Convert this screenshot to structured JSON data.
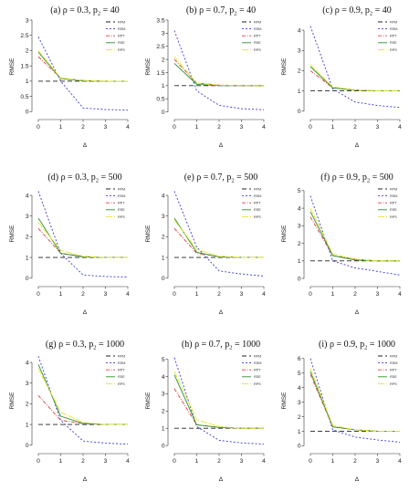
{
  "figure": {
    "legend_order": [
      "RFM",
      "RSM",
      "RPT",
      "RSE",
      "RPS"
    ],
    "series_styles": {
      "RFM": {
        "color": "#222222",
        "dash": "5,3"
      },
      "RSM": {
        "color": "#3b3bd6",
        "dash": "2,2"
      },
      "RPT": {
        "color": "#e03c3c",
        "dash": "4,1.5,1,1.5"
      },
      "RSE": {
        "color": "#2f8f2f",
        "dash": ""
      },
      "RPS": {
        "color": "#e6e62a",
        "dash": "7,2"
      }
    }
  },
  "chart_data": [
    {
      "id": "a",
      "type": "line",
      "title_prefix": "(a) ρ = 0.3, p",
      "title_sub": "2",
      "title_suffix": " = 40",
      "xlabel": "Δ",
      "ylabel": "RMSE",
      "x": [
        0,
        1,
        2,
        3,
        4
      ],
      "xlim": [
        0,
        4
      ],
      "ylim": [
        -0.05,
        3.0
      ],
      "yticks": [
        0.0,
        0.5,
        1.0,
        1.5,
        2.0,
        2.5,
        3.0
      ],
      "series": [
        {
          "name": "RFM",
          "values": [
            1.0,
            1.0,
            1.0,
            1.0,
            1.0
          ]
        },
        {
          "name": "RSM",
          "values": [
            2.45,
            1.0,
            0.12,
            0.07,
            0.05
          ]
        },
        {
          "name": "RPT",
          "values": [
            1.8,
            1.1,
            1.02,
            1.0,
            1.0
          ]
        },
        {
          "name": "RSE",
          "values": [
            1.95,
            1.08,
            1.01,
            1.0,
            1.0
          ]
        },
        {
          "name": "RPS",
          "values": [
            2.0,
            1.1,
            1.02,
            1.0,
            1.0
          ]
        }
      ]
    },
    {
      "id": "b",
      "type": "line",
      "title_prefix": "(b) ρ = 0.7, p",
      "title_sub": "2",
      "title_suffix": " = 40",
      "xlabel": "Δ",
      "ylabel": "RMSE",
      "x": [
        0,
        1,
        2,
        3,
        4
      ],
      "xlim": [
        0,
        4
      ],
      "ylim": [
        -0.05,
        3.5
      ],
      "yticks": [
        0.0,
        0.5,
        1.0,
        1.5,
        2.0,
        2.5,
        3.0,
        3.5
      ],
      "series": [
        {
          "name": "RFM",
          "values": [
            1.0,
            1.0,
            1.0,
            1.0,
            1.0
          ]
        },
        {
          "name": "RSM",
          "values": [
            3.1,
            0.8,
            0.25,
            0.12,
            0.08
          ]
        },
        {
          "name": "RPT",
          "values": [
            2.0,
            1.1,
            1.02,
            1.0,
            1.0
          ]
        },
        {
          "name": "RSE",
          "values": [
            1.85,
            1.05,
            1.0,
            1.0,
            1.0
          ]
        },
        {
          "name": "RPS",
          "values": [
            2.1,
            1.1,
            1.02,
            1.0,
            1.0
          ]
        }
      ]
    },
    {
      "id": "c",
      "type": "line",
      "title_prefix": "(c) ρ = 0.9, p",
      "title_sub": "2",
      "title_suffix": " = 40",
      "xlabel": "Δ",
      "ylabel": "RMSE",
      "x": [
        0,
        1,
        2,
        3,
        4
      ],
      "xlim": [
        0,
        4
      ],
      "ylim": [
        -0.1,
        4.5
      ],
      "yticks": [
        0,
        1,
        2,
        3,
        4
      ],
      "series": [
        {
          "name": "RFM",
          "values": [
            1.0,
            1.0,
            1.0,
            1.0,
            1.0
          ]
        },
        {
          "name": "RSM",
          "values": [
            4.2,
            1.1,
            0.45,
            0.28,
            0.18
          ]
        },
        {
          "name": "RPT",
          "values": [
            2.0,
            1.15,
            1.05,
            1.0,
            1.0
          ]
        },
        {
          "name": "RSE",
          "values": [
            2.2,
            1.15,
            1.03,
            1.0,
            1.0
          ]
        },
        {
          "name": "RPS",
          "values": [
            2.3,
            1.2,
            1.05,
            1.0,
            1.0
          ]
        }
      ]
    },
    {
      "id": "d",
      "type": "line",
      "title_prefix": "(d) ρ = 0.3, p",
      "title_sub": "2",
      "title_suffix": " = 500",
      "xlabel": "Δ",
      "ylabel": "RMSE",
      "x": [
        0,
        1,
        2,
        3,
        4
      ],
      "xlim": [
        0,
        4
      ],
      "ylim": [
        -0.1,
        4.4
      ],
      "yticks": [
        0,
        1,
        2,
        3,
        4
      ],
      "series": [
        {
          "name": "RFM",
          "values": [
            1.0,
            1.0,
            1.0,
            1.0,
            1.0
          ]
        },
        {
          "name": "RSM",
          "values": [
            4.2,
            1.2,
            0.15,
            0.08,
            0.05
          ]
        },
        {
          "name": "RPT",
          "values": [
            2.4,
            1.2,
            1.05,
            1.0,
            1.0
          ]
        },
        {
          "name": "RSE",
          "values": [
            2.9,
            1.2,
            1.03,
            1.0,
            1.0
          ]
        },
        {
          "name": "RPS",
          "values": [
            2.7,
            1.35,
            1.05,
            1.0,
            1.0
          ]
        }
      ]
    },
    {
      "id": "e",
      "type": "line",
      "title_prefix": "(e) ρ = 0.7, p",
      "title_sub": "2",
      "title_suffix": " = 500",
      "xlabel": "Δ",
      "ylabel": "RMSE",
      "x": [
        0,
        1,
        2,
        3,
        4
      ],
      "xlim": [
        0,
        4
      ],
      "ylim": [
        -0.1,
        4.4
      ],
      "yticks": [
        0,
        1,
        2,
        3,
        4
      ],
      "series": [
        {
          "name": "RFM",
          "values": [
            1.0,
            1.0,
            1.0,
            1.0,
            1.0
          ]
        },
        {
          "name": "RSM",
          "values": [
            4.2,
            1.5,
            0.35,
            0.2,
            0.1
          ]
        },
        {
          "name": "RPT",
          "values": [
            2.4,
            1.2,
            1.05,
            1.0,
            1.0
          ]
        },
        {
          "name": "RSE",
          "values": [
            2.9,
            1.25,
            1.03,
            1.0,
            1.0
          ]
        },
        {
          "name": "RPS",
          "values": [
            2.8,
            1.4,
            1.05,
            1.0,
            1.0
          ]
        }
      ]
    },
    {
      "id": "f",
      "type": "line",
      "title_prefix": "(f) ρ = 0.9, p",
      "title_sub": "2",
      "title_suffix": " = 500",
      "xlabel": "Δ",
      "ylabel": "RMSE",
      "x": [
        0,
        1,
        2,
        3,
        4
      ],
      "xlim": [
        0,
        4
      ],
      "ylim": [
        -0.1,
        5.2
      ],
      "yticks": [
        0,
        1,
        2,
        3,
        4,
        5
      ],
      "series": [
        {
          "name": "RFM",
          "values": [
            1.0,
            1.0,
            1.0,
            1.0,
            1.0
          ]
        },
        {
          "name": "RSM",
          "values": [
            4.7,
            1.0,
            0.6,
            0.4,
            0.2
          ]
        },
        {
          "name": "RPT",
          "values": [
            3.5,
            1.3,
            1.1,
            1.0,
            1.0
          ]
        },
        {
          "name": "RSE",
          "values": [
            3.8,
            1.3,
            1.05,
            1.0,
            1.0
          ]
        },
        {
          "name": "RPS",
          "values": [
            4.0,
            1.4,
            1.1,
            1.0,
            1.0
          ]
        }
      ]
    },
    {
      "id": "g",
      "type": "line",
      "title_prefix": "(g) ρ = 0.3, p",
      "title_sub": "2",
      "title_suffix": " = 1000",
      "xlabel": "Δ",
      "ylabel": "RMSE",
      "x": [
        0,
        1,
        2,
        3,
        4
      ],
      "xlim": [
        0,
        4
      ],
      "ylim": [
        -0.1,
        4.4
      ],
      "yticks": [
        0,
        1,
        2,
        3,
        4
      ],
      "series": [
        {
          "name": "RFM",
          "values": [
            1.0,
            1.0,
            1.0,
            1.0,
            1.0
          ]
        },
        {
          "name": "RSM",
          "values": [
            4.3,
            1.2,
            0.2,
            0.1,
            0.05
          ]
        },
        {
          "name": "RPT",
          "values": [
            2.4,
            1.2,
            1.05,
            1.0,
            1.0
          ]
        },
        {
          "name": "RSE",
          "values": [
            3.9,
            1.4,
            1.05,
            1.0,
            1.0
          ]
        },
        {
          "name": "RPS",
          "values": [
            3.7,
            1.6,
            1.1,
            1.0,
            1.0
          ]
        }
      ]
    },
    {
      "id": "h",
      "type": "line",
      "title_prefix": "(h) ρ = 0.7, p",
      "title_sub": "2",
      "title_suffix": " = 1000",
      "xlabel": "Δ",
      "ylabel": "RMSE",
      "x": [
        0,
        1,
        2,
        3,
        4
      ],
      "xlim": [
        0,
        4
      ],
      "ylim": [
        -0.1,
        5.3
      ],
      "yticks": [
        0,
        1,
        2,
        3,
        4,
        5
      ],
      "series": [
        {
          "name": "RFM",
          "values": [
            1.0,
            1.0,
            1.0,
            1.0,
            1.0
          ]
        },
        {
          "name": "RSM",
          "values": [
            5.1,
            1.1,
            0.3,
            0.15,
            0.08
          ]
        },
        {
          "name": "RPT",
          "values": [
            3.3,
            1.2,
            1.05,
            1.0,
            1.0
          ]
        },
        {
          "name": "RSE",
          "values": [
            4.1,
            1.2,
            1.05,
            1.0,
            1.0
          ]
        },
        {
          "name": "RPS",
          "values": [
            4.3,
            1.5,
            1.1,
            1.0,
            1.0
          ]
        }
      ]
    },
    {
      "id": "i",
      "type": "line",
      "title_prefix": "(i) ρ = 0.9, p",
      "title_sub": "2",
      "title_suffix": " = 1000",
      "xlabel": "Δ",
      "ylabel": "RMSE",
      "x": [
        0,
        1,
        2,
        3,
        4
      ],
      "xlim": [
        0,
        4
      ],
      "ylim": [
        -0.1,
        6.3
      ],
      "yticks": [
        0,
        1,
        2,
        3,
        4,
        5,
        6
      ],
      "series": [
        {
          "name": "RFM",
          "values": [
            1.0,
            1.0,
            1.0,
            1.0,
            1.0
          ]
        },
        {
          "name": "RSM",
          "values": [
            6.0,
            1.1,
            0.6,
            0.4,
            0.25
          ]
        },
        {
          "name": "RPT",
          "values": [
            4.9,
            1.3,
            1.1,
            1.0,
            1.0
          ]
        },
        {
          "name": "RSE",
          "values": [
            5.1,
            1.3,
            1.1,
            1.0,
            1.0
          ]
        },
        {
          "name": "RPS",
          "values": [
            5.3,
            1.4,
            1.1,
            1.0,
            1.0
          ]
        }
      ]
    }
  ]
}
